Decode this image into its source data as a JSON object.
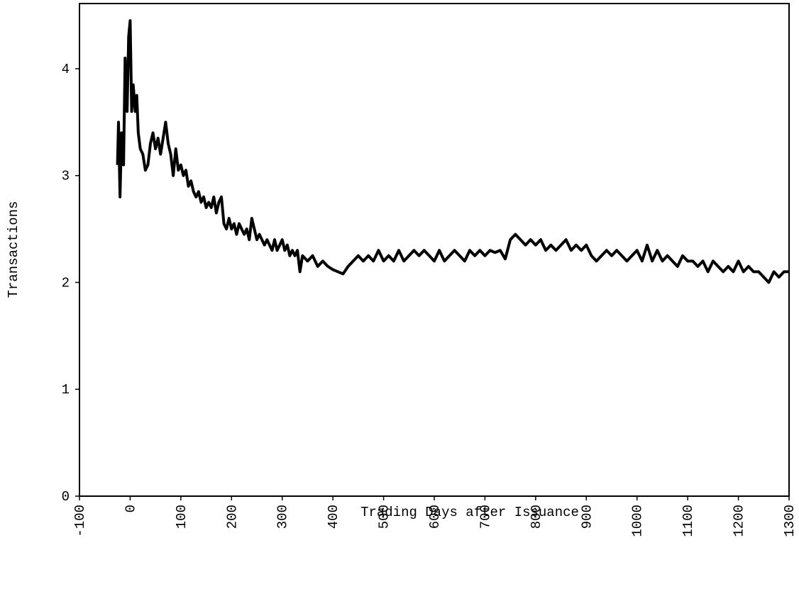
{
  "chart_data": {
    "type": "line",
    "x_label": "Trading Days after Issuance",
    "y_label": "Transactions",
    "xlim": [
      -100,
      1300
    ],
    "ylim": [
      0,
      4.61
    ],
    "xticks": [
      -100,
      0,
      100,
      200,
      300,
      400,
      500,
      600,
      700,
      800,
      900,
      1000,
      1100,
      1200,
      1300
    ],
    "yticks": [
      0,
      1,
      2,
      3,
      4
    ],
    "series": [
      {
        "color": "#000000",
        "x": [
          -25,
          -23,
          -20,
          -17,
          -13,
          -10,
          -6,
          -3,
          0,
          3,
          6,
          10,
          13,
          16,
          20,
          25,
          30,
          35,
          40,
          45,
          50,
          55,
          60,
          65,
          70,
          75,
          80,
          85,
          90,
          95,
          100,
          105,
          110,
          115,
          120,
          125,
          130,
          135,
          140,
          145,
          150,
          155,
          160,
          165,
          170,
          175,
          180,
          185,
          190,
          195,
          200,
          205,
          210,
          215,
          220,
          225,
          230,
          235,
          240,
          245,
          250,
          255,
          260,
          265,
          270,
          275,
          280,
          285,
          290,
          295,
          300,
          305,
          310,
          315,
          320,
          325,
          330,
          335,
          340,
          350,
          360,
          370,
          380,
          390,
          400,
          410,
          420,
          430,
          440,
          450,
          460,
          470,
          480,
          490,
          500,
          510,
          520,
          530,
          540,
          550,
          560,
          570,
          580,
          590,
          600,
          610,
          620,
          630,
          640,
          650,
          660,
          670,
          680,
          690,
          700,
          710,
          720,
          730,
          740,
          750,
          760,
          770,
          780,
          790,
          800,
          810,
          820,
          830,
          840,
          850,
          860,
          870,
          880,
          890,
          900,
          910,
          920,
          930,
          940,
          950,
          960,
          970,
          980,
          990,
          1000,
          1010,
          1020,
          1030,
          1040,
          1050,
          1060,
          1070,
          1080,
          1090,
          1100,
          1110,
          1120,
          1130,
          1140,
          1150,
          1160,
          1170,
          1180,
          1190,
          1200,
          1210,
          1220,
          1230,
          1240,
          1250,
          1260,
          1270,
          1280,
          1290,
          1300
        ],
        "values": [
          3.1,
          3.5,
          2.8,
          3.4,
          3.1,
          4.1,
          3.6,
          4.3,
          4.45,
          3.6,
          3.85,
          3.6,
          3.75,
          3.4,
          3.25,
          3.2,
          3.05,
          3.1,
          3.3,
          3.4,
          3.25,
          3.35,
          3.2,
          3.35,
          3.5,
          3.3,
          3.2,
          3.0,
          3.25,
          3.05,
          3.1,
          3.0,
          3.05,
          2.9,
          2.95,
          2.85,
          2.8,
          2.85,
          2.75,
          2.8,
          2.7,
          2.75,
          2.7,
          2.8,
          2.65,
          2.75,
          2.8,
          2.55,
          2.5,
          2.6,
          2.5,
          2.55,
          2.45,
          2.55,
          2.5,
          2.45,
          2.5,
          2.4,
          2.6,
          2.5,
          2.4,
          2.45,
          2.4,
          2.35,
          2.4,
          2.35,
          2.3,
          2.4,
          2.3,
          2.35,
          2.4,
          2.3,
          2.35,
          2.25,
          2.3,
          2.25,
          2.3,
          2.1,
          2.25,
          2.2,
          2.25,
          2.15,
          2.2,
          2.15,
          2.12,
          2.1,
          2.08,
          2.15,
          2.2,
          2.25,
          2.2,
          2.25,
          2.2,
          2.3,
          2.2,
          2.25,
          2.2,
          2.3,
          2.2,
          2.25,
          2.3,
          2.25,
          2.3,
          2.25,
          2.2,
          2.3,
          2.2,
          2.25,
          2.3,
          2.25,
          2.2,
          2.3,
          2.25,
          2.3,
          2.25,
          2.3,
          2.28,
          2.3,
          2.22,
          2.4,
          2.45,
          2.4,
          2.35,
          2.4,
          2.35,
          2.4,
          2.3,
          2.35,
          2.3,
          2.35,
          2.4,
          2.3,
          2.35,
          2.3,
          2.35,
          2.25,
          2.2,
          2.25,
          2.3,
          2.25,
          2.3,
          2.25,
          2.2,
          2.25,
          2.3,
          2.2,
          2.35,
          2.2,
          2.3,
          2.2,
          2.25,
          2.2,
          2.15,
          2.25,
          2.2,
          2.2,
          2.15,
          2.2,
          2.1,
          2.2,
          2.15,
          2.1,
          2.15,
          2.1,
          2.2,
          2.1,
          2.15,
          2.1,
          2.1,
          2.05,
          2.0,
          2.1,
          2.05,
          2.1,
          2.1
        ]
      }
    ]
  }
}
